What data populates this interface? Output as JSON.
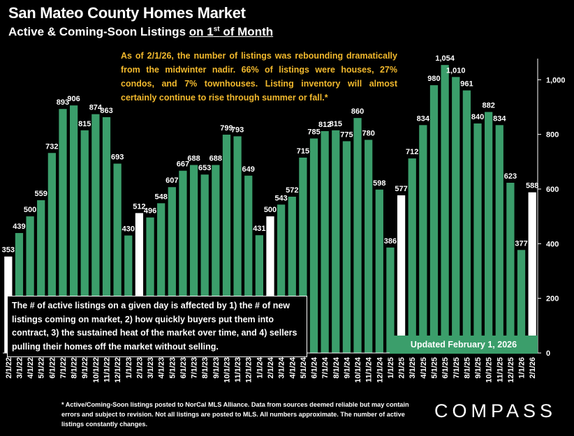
{
  "header": {
    "title": "San Mateo County Homes Market",
    "subtitle_pre": "Active & Coming-Soon Listings ",
    "subtitle_on": "on 1",
    "subtitle_sup": "st",
    "subtitle_post": " of Month"
  },
  "annotations": {
    "top": "As of 2/1/26, the number of listings was rebounding dramatically from the midwinter nadir. 66% of listings were houses, 27% condos, and 7% townhouses. Listing inventory will almost certainly continue to rise through summer or fall.*",
    "box": "The # of active listings on a given day is affected by 1) the # of new listings coming on market, 2) how quickly buyers put them into contract, 3) the sustained heat of the market over time, and 4) sellers pulling their homes off the market without selling.",
    "updated": "Updated February 1, 2026"
  },
  "footnote": "* Active/Coming-Soon listings posted to NorCal MLS Alliance.  Data from sources deemed reliable but may contain errors and subject to revision.  Not all listings are posted to MLS. All numbers approximate. The number of active listings constantly changes.",
  "logo": "COMPASS",
  "colors": {
    "bar": "#3b9e6b",
    "highlight": "#ffffff",
    "annotation": "#f2b92d",
    "background": "#000000"
  },
  "chart_data": {
    "type": "bar",
    "title": "San Mateo County Homes Market",
    "ylim": [
      0,
      1100
    ],
    "yticks": [
      0,
      200,
      400,
      600,
      800,
      1000
    ],
    "ytick_labels": [
      "0",
      "200",
      "400",
      "600",
      "800",
      "1,000"
    ],
    "y_axis_side": "right",
    "grid": false,
    "categories": [
      "2/1/22",
      "3/1/22",
      "4/1/22",
      "5/1/22",
      "6/1/22",
      "7/1/22",
      "8/1/22",
      "9/1/22",
      "10/1/22",
      "11/1/22",
      "12/1/22",
      "1/1/23",
      "2/1/23",
      "3/1/23",
      "4/1/23",
      "5/1/23",
      "6/1/23",
      "7/1/23",
      "8/1/23",
      "9/1/23",
      "10/1/23",
      "11/1/23",
      "12/1/23",
      "1/1/24",
      "2/1/24",
      "3/1/24",
      "4/1/24",
      "5/1/24",
      "6/1/24",
      "7/1/24",
      "8/1/24",
      "9/1/24",
      "10/1/24",
      "11/1/24",
      "12/1/24",
      "1/1/25",
      "2/1/25",
      "3/1/25",
      "4/1/25",
      "5/1/25",
      "6/1/25",
      "7/1/25",
      "8/1/25",
      "9/1/25",
      "10/1/25",
      "11/1/25",
      "12/1/25",
      "1/1/26",
      "2/1/26"
    ],
    "values": [
      353,
      439,
      500,
      559,
      732,
      893,
      906,
      815,
      874,
      863,
      693,
      430,
      512,
      496,
      548,
      607,
      667,
      688,
      653,
      688,
      799,
      793,
      649,
      431,
      500,
      543,
      572,
      715,
      785,
      812,
      815,
      775,
      860,
      780,
      598,
      386,
      577,
      712,
      834,
      980,
      1054,
      1010,
      961,
      840,
      882,
      834,
      623,
      377,
      588
    ],
    "value_labels": [
      "353",
      "439",
      "500",
      "559",
      "732",
      "893",
      "906",
      "815",
      "874",
      "863",
      "693",
      "430",
      "512",
      "496",
      "548",
      "607",
      "667",
      "688",
      "653",
      "688",
      "799",
      "793",
      "649",
      "431",
      "500",
      "543",
      "572",
      "715",
      "785",
      "812",
      "815",
      "775",
      "860",
      "780",
      "598",
      "386",
      "577",
      "712",
      "834",
      "980",
      "1,054",
      "1,010",
      "961",
      "840",
      "882",
      "834",
      "623",
      "377",
      "588"
    ],
    "highlighted_categories": [
      "2/1/22",
      "2/1/23",
      "2/1/24",
      "2/1/25",
      "2/1/26"
    ]
  }
}
